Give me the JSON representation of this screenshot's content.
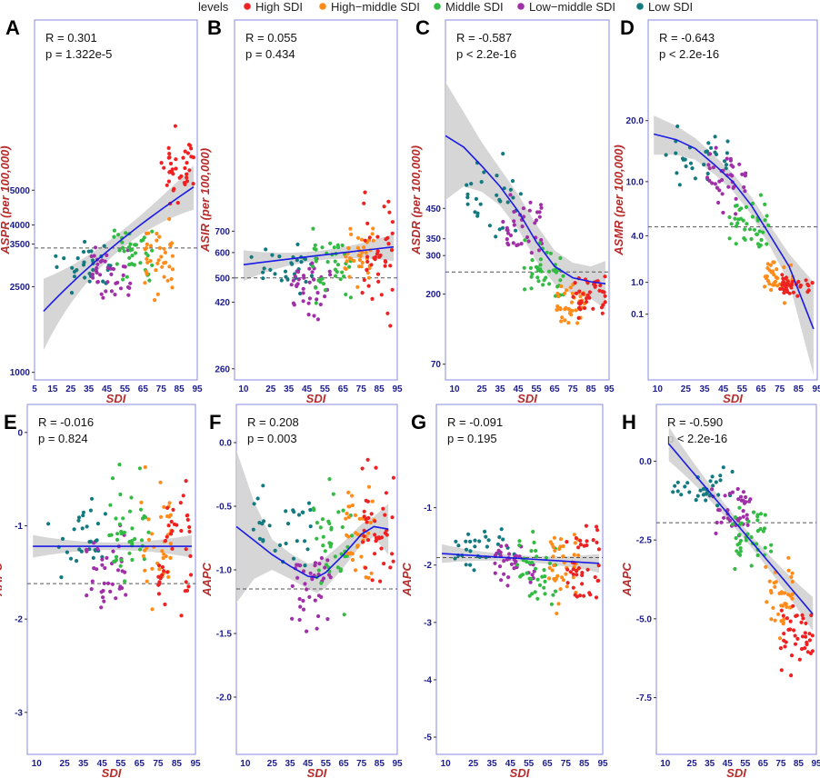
{
  "legend": {
    "title": "levels",
    "items": [
      {
        "name": "High SDI",
        "color": "#ee2222"
      },
      {
        "name": "High−middle SDI",
        "color": "#ff8c1a"
      },
      {
        "name": "Middle SDI",
        "color": "#33bb44"
      },
      {
        "name": "Low−middle SDI",
        "color": "#a030a8"
      },
      {
        "name": "Low SDI",
        "color": "#137a80"
      }
    ]
  },
  "colors": {
    "axis_title": "#b82c2c",
    "tick_label": "#1c1c8c",
    "frame": "#8a8ae0",
    "fit_line": "#1b1be6",
    "ci_band": "#cfcfcf",
    "reference_line": "#555555"
  },
  "chart_data": [
    {
      "panel": "A",
      "type": "scatter",
      "xlabel": "SDI",
      "ylabel": "ASPR (per 100,000)",
      "stats": [
        "R = 0.301",
        "p = 1.322e-5"
      ],
      "xticks": [
        "5",
        "15",
        "25",
        "35",
        "45",
        "55",
        "65",
        "75",
        "85",
        "95"
      ],
      "xlim": [
        5,
        95
      ],
      "yscale": "sqrt",
      "yticks": [
        "1000",
        "2500",
        "3500",
        "4000",
        "5000"
      ],
      "ylim": [
        900,
        11500
      ],
      "reference_y": 3400,
      "fit": "linear",
      "fit_x": [
        10,
        93
      ],
      "fit_y": [
        2000,
        5100
      ],
      "ci_halfwidth": 500
    },
    {
      "panel": "B",
      "type": "scatter",
      "xlabel": "SDI",
      "ylabel": "ASIR (per 100,000)",
      "stats": [
        "R = 0.055",
        "p = 0.434"
      ],
      "xticks": [
        "10",
        "25",
        "35",
        "45",
        "55",
        "65",
        "75",
        "85",
        "95"
      ],
      "xlim": [
        5,
        95
      ],
      "yscale": "log",
      "yticks": [
        "260",
        "420",
        "500",
        "600",
        "700"
      ],
      "ylim": [
        240,
        3200
      ],
      "reference_y": 500,
      "fit": "linear",
      "fit_x": [
        10,
        93
      ],
      "fit_y": [
        550,
        625
      ],
      "ci_halfwidth": 45
    },
    {
      "panel": "C",
      "type": "scatter",
      "xlabel": "SDI",
      "ylabel": "ASDR (per 100,000)",
      "stats": [
        "R = -0.587",
        "p < 2.2e-16"
      ],
      "xticks": [
        "10",
        "25",
        "35",
        "45",
        "55",
        "65",
        "75",
        "85",
        "95"
      ],
      "xlim": [
        5,
        95
      ],
      "yscale": "sqrt",
      "yticks": [
        "70",
        "200",
        "300",
        "350",
        "450"
      ],
      "ylim": [
        50,
        1350
      ],
      "reference_y": 255,
      "fit": "loess",
      "fit_x": [
        5,
        15,
        25,
        35,
        45,
        55,
        65,
        75,
        85,
        93
      ],
      "fit_y": [
        740,
        690,
        610,
        530,
        440,
        340,
        270,
        240,
        230,
        225
      ],
      "ci_halfwidth": [
        260,
        160,
        100,
        70,
        60,
        55,
        45,
        40,
        40,
        60
      ]
    },
    {
      "panel": "D",
      "type": "scatter",
      "xlabel": "SDI",
      "ylabel": "ASMR (per 100,000)",
      "stats": [
        "R = -0.643",
        "p < 2.2e-16"
      ],
      "xticks": [
        "10",
        "25",
        "35",
        "45",
        "55",
        "65",
        "75",
        "85",
        "95"
      ],
      "xlim": [
        5,
        95
      ],
      "yscale": "sqrt",
      "yticks": [
        "0.1",
        "1.0",
        "4.0",
        "10.0",
        "20.0"
      ],
      "ylim": [
        -1.2,
        44
      ],
      "reference_y": 4.8,
      "fit": "loess",
      "fit_x": [
        8,
        20,
        30,
        40,
        50,
        60,
        70,
        80,
        93
      ],
      "fit_y": [
        17.5,
        16.5,
        15,
        12.5,
        10,
        7,
        4,
        1.8,
        0
      ],
      "ci_halfwidth": [
        3.5,
        2.5,
        1.8,
        1.4,
        1.2,
        1.0,
        0.9,
        0.8,
        1.0
      ]
    },
    {
      "panel": "E",
      "type": "scatter",
      "xlabel": "SDI",
      "ylabel": "AAPC",
      "stats": [
        "R = -0.016",
        "p = 0.824"
      ],
      "xticks": [
        "10",
        "25",
        "35",
        "45",
        "55",
        "65",
        "75",
        "85",
        "95"
      ],
      "xlim": [
        5,
        95
      ],
      "yscale": "linear",
      "yticks": [
        "-3",
        "-2",
        "-1",
        "0"
      ],
      "ylim": [
        -3.45,
        0.3
      ],
      "reference_y": -1.62,
      "fit": "linear",
      "fit_x": [
        8,
        93
      ],
      "fit_y": [
        -1.22,
        -1.22
      ],
      "ci_halfwidth": 0.09
    },
    {
      "panel": "F",
      "type": "scatter",
      "xlabel": "SDI",
      "ylabel": "AAPC",
      "stats": [
        "R = 0.208",
        "p = 0.003"
      ],
      "xticks": [
        "10",
        "25",
        "35",
        "45",
        "55",
        "65",
        "75",
        "85",
        "95"
      ],
      "xlim": [
        5,
        95
      ],
      "yscale": "linear",
      "yticks": [
        "-2.0",
        "-1.5",
        "-1.0",
        "-0.5",
        "0.0"
      ],
      "ylim": [
        -2.45,
        0.3
      ],
      "reference_y": -1.15,
      "fit": "loess",
      "fit_x": [
        5,
        15,
        25,
        35,
        45,
        50,
        55,
        65,
        75,
        82,
        90
      ],
      "fit_y": [
        -0.66,
        -0.77,
        -0.88,
        -0.97,
        -1.05,
        -1.06,
        -1.02,
        -0.88,
        -0.72,
        -0.66,
        -0.68
      ],
      "ci_halfwidth": [
        0.6,
        0.3,
        0.12,
        0.1,
        0.1,
        0.12,
        0.12,
        0.1,
        0.08,
        0.08,
        0.2
      ]
    },
    {
      "panel": "G",
      "type": "scatter",
      "xlabel": "SDI",
      "ylabel": "AAPC",
      "stats": [
        "R = -0.091",
        "p = 0.195"
      ],
      "xticks": [
        "10",
        "25",
        "35",
        "45",
        "55",
        "65",
        "75",
        "85",
        "95"
      ],
      "xlim": [
        5,
        95
      ],
      "yscale": "linear",
      "yticks": [
        "-5",
        "-4",
        "-3",
        "-2",
        "-1"
      ],
      "ylim": [
        -5.3,
        0.8
      ],
      "reference_y": -1.87,
      "fit": "linear",
      "fit_x": [
        8,
        93
      ],
      "fit_y": [
        -1.8,
        -1.97
      ],
      "ci_halfwidth": 0.12
    },
    {
      "panel": "H",
      "type": "scatter",
      "xlabel": "SDI",
      "ylabel": "AAPC",
      "stats": [
        "R = -0.590",
        "p < 2.2e-16"
      ],
      "xticks": [
        "10",
        "25",
        "35",
        "45",
        "55",
        "65",
        "75",
        "85",
        "95"
      ],
      "xlim": [
        5,
        95
      ],
      "yscale": "linear",
      "yticks": [
        "-7.5",
        "-5.0",
        "-2.5",
        "0.0"
      ],
      "ylim": [
        -9.3,
        1.8
      ],
      "reference_y": -1.95,
      "fit": "linear",
      "fit_x": [
        12,
        93
      ],
      "fit_y": [
        0.55,
        -4.85
      ],
      "ci_halfwidth": 0.4
    }
  ]
}
